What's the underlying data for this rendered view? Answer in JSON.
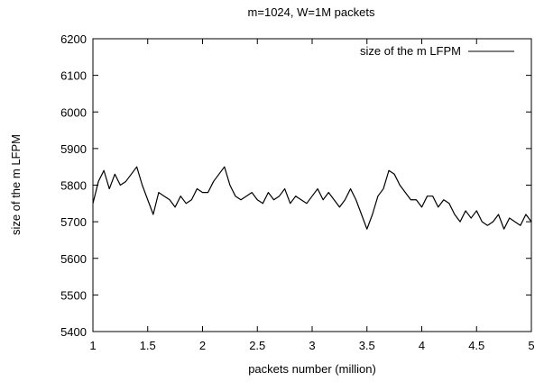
{
  "chart_data": {
    "type": "line",
    "title": "m=1024, W=1M packets",
    "xlabel": "packets number (million)",
    "ylabel": "size of the m LFPM",
    "xlim": [
      1,
      5
    ],
    "ylim": [
      5400,
      6200
    ],
    "x_ticks": [
      "1",
      "1.5",
      "2",
      "2.5",
      "3",
      "3.5",
      "4",
      "4.5",
      "5"
    ],
    "y_ticks": [
      "5400",
      "5500",
      "5600",
      "5700",
      "5800",
      "5900",
      "6000",
      "6100",
      "6200"
    ],
    "grid": false,
    "legend_position": "top-right",
    "line_color": "#000000",
    "series": [
      {
        "name": "size of the m LFPM",
        "x": [
          1.0,
          1.05,
          1.1,
          1.15,
          1.2,
          1.25,
          1.3,
          1.35,
          1.4,
          1.45,
          1.5,
          1.55,
          1.6,
          1.65,
          1.7,
          1.75,
          1.8,
          1.85,
          1.9,
          1.95,
          2.0,
          2.05,
          2.1,
          2.15,
          2.2,
          2.25,
          2.3,
          2.35,
          2.4,
          2.45,
          2.5,
          2.55,
          2.6,
          2.65,
          2.7,
          2.75,
          2.8,
          2.85,
          2.9,
          2.95,
          3.0,
          3.05,
          3.1,
          3.15,
          3.2,
          3.25,
          3.3,
          3.35,
          3.4,
          3.45,
          3.5,
          3.55,
          3.6,
          3.65,
          3.7,
          3.75,
          3.8,
          3.85,
          3.9,
          3.95,
          4.0,
          4.05,
          4.1,
          4.15,
          4.2,
          4.25,
          4.3,
          4.35,
          4.4,
          4.45,
          4.5,
          4.55,
          4.6,
          4.65,
          4.7,
          4.75,
          4.8,
          4.85,
          4.9,
          4.95,
          5.0
        ],
        "values": [
          5750,
          5810,
          5840,
          5790,
          5830,
          5800,
          5810,
          5830,
          5850,
          5800,
          5760,
          5720,
          5780,
          5770,
          5760,
          5740,
          5770,
          5750,
          5760,
          5790,
          5780,
          5780,
          5810,
          5830,
          5850,
          5800,
          5770,
          5760,
          5770,
          5780,
          5760,
          5750,
          5780,
          5760,
          5770,
          5790,
          5750,
          5770,
          5760,
          5750,
          5770,
          5790,
          5760,
          5780,
          5760,
          5740,
          5760,
          5790,
          5760,
          5720,
          5680,
          5720,
          5770,
          5790,
          5840,
          5830,
          5800,
          5780,
          5760,
          5760,
          5740,
          5770,
          5770,
          5740,
          5760,
          5750,
          5720,
          5700,
          5730,
          5710,
          5730,
          5700,
          5690,
          5700,
          5720,
          5680,
          5710,
          5700,
          5690,
          5720,
          5700
        ]
      }
    ]
  }
}
